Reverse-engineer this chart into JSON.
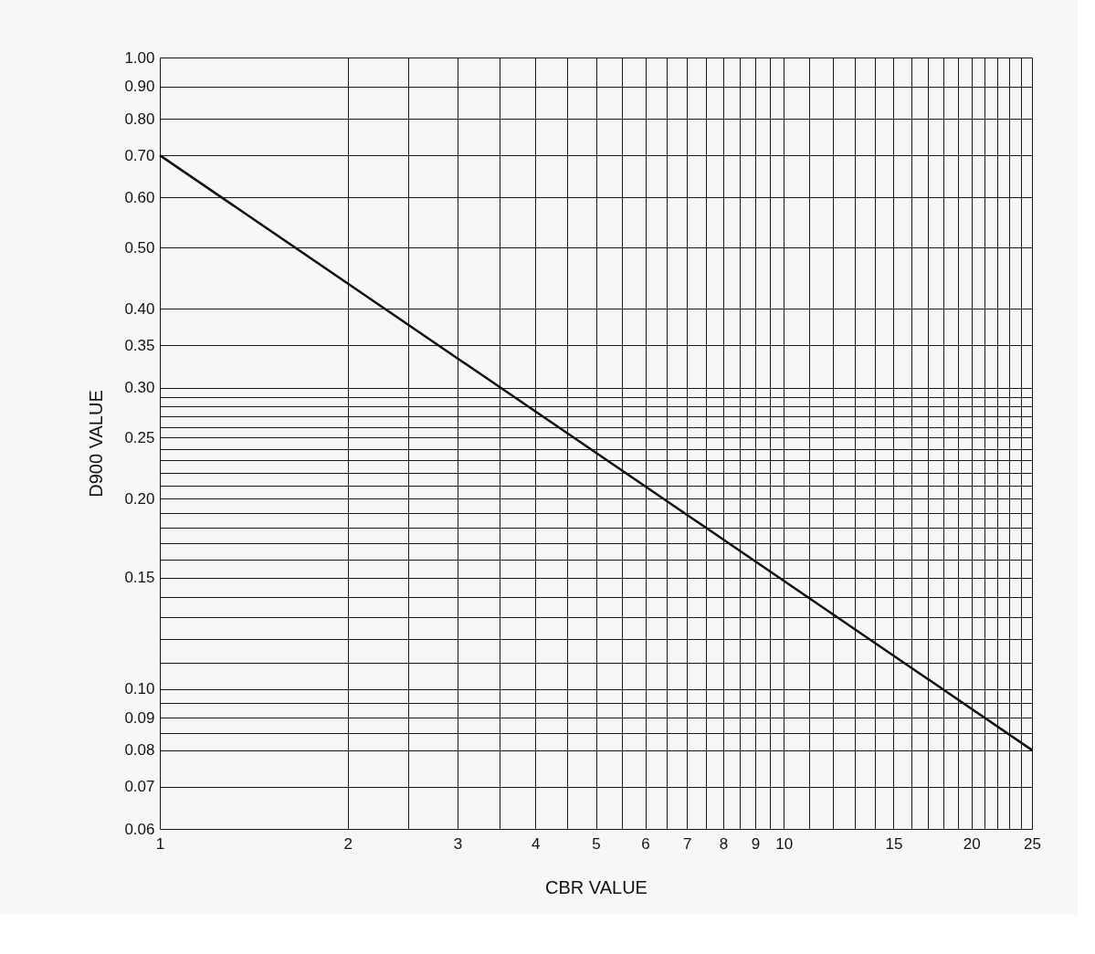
{
  "chart_data": {
    "type": "line",
    "xlabel": "CBR VALUE",
    "ylabel": "D900 VALUE",
    "log": "xy",
    "grid": true,
    "marker": "none",
    "line_style": "solid",
    "x": [
      1,
      25
    ],
    "series": [
      {
        "color": "#111111",
        "values": [
          0.7,
          0.08
        ]
      }
    ],
    "xlim": [
      1,
      25
    ],
    "ylim": [
      0.06,
      1.0
    ],
    "xticks": [
      1,
      2,
      {
        "value": 2.5,
        "label": null
      },
      3,
      {
        "value": 3.5,
        "label": null
      },
      4,
      {
        "value": 4.5,
        "label": null
      },
      5,
      {
        "value": 5.5,
        "label": null
      },
      6,
      {
        "value": 6.5,
        "label": null
      },
      7,
      {
        "value": 7.5,
        "label": null
      },
      8,
      {
        "value": 8.5,
        "label": null
      },
      9,
      {
        "value": 9.5,
        "label": null
      },
      10,
      {
        "value": 11,
        "label": null
      },
      {
        "value": 12,
        "label": null
      },
      {
        "value": 13,
        "label": null
      },
      {
        "value": 14,
        "label": null
      },
      15,
      {
        "value": 16,
        "label": null
      },
      {
        "value": 17,
        "label": null
      },
      {
        "value": 18,
        "label": null
      },
      {
        "value": 19,
        "label": null
      },
      20,
      {
        "value": 21,
        "label": null
      },
      {
        "value": 22,
        "label": null
      },
      {
        "value": 23,
        "label": null
      },
      {
        "value": 24,
        "label": null
      },
      25
    ],
    "yticks": [
      0.06,
      0.07,
      0.08,
      {
        "value": 0.085,
        "label": null
      },
      0.09,
      {
        "value": 0.095,
        "label": null
      },
      {
        "value": 0.1,
        "label": "0.10"
      },
      {
        "value": 0.11,
        "label": null
      },
      {
        "value": 0.12,
        "label": null
      },
      {
        "value": 0.13,
        "label": null
      },
      {
        "value": 0.14,
        "label": null
      },
      0.15,
      {
        "value": 0.16,
        "label": null
      },
      {
        "value": 0.17,
        "label": null
      },
      {
        "value": 0.18,
        "label": null
      },
      {
        "value": 0.19,
        "label": null
      },
      {
        "value": 0.2,
        "label": "0.20"
      },
      {
        "value": 0.21,
        "label": null
      },
      {
        "value": 0.22,
        "label": null
      },
      {
        "value": 0.23,
        "label": null
      },
      {
        "value": 0.24,
        "label": null
      },
      0.25,
      {
        "value": 0.26,
        "label": null
      },
      {
        "value": 0.27,
        "label": null
      },
      {
        "value": 0.28,
        "label": null
      },
      {
        "value": 0.29,
        "label": null
      },
      {
        "value": 0.3,
        "label": "0.30"
      },
      0.35,
      {
        "value": 0.4,
        "label": "0.40"
      },
      {
        "value": 0.5,
        "label": "0.50"
      },
      {
        "value": 0.6,
        "label": "0.60"
      },
      {
        "value": 0.7,
        "label": "0.70"
      },
      {
        "value": 0.8,
        "label": "0.80"
      },
      {
        "value": 0.9,
        "label": "0.90"
      },
      {
        "value": 1.0,
        "label": "1.00"
      }
    ]
  }
}
